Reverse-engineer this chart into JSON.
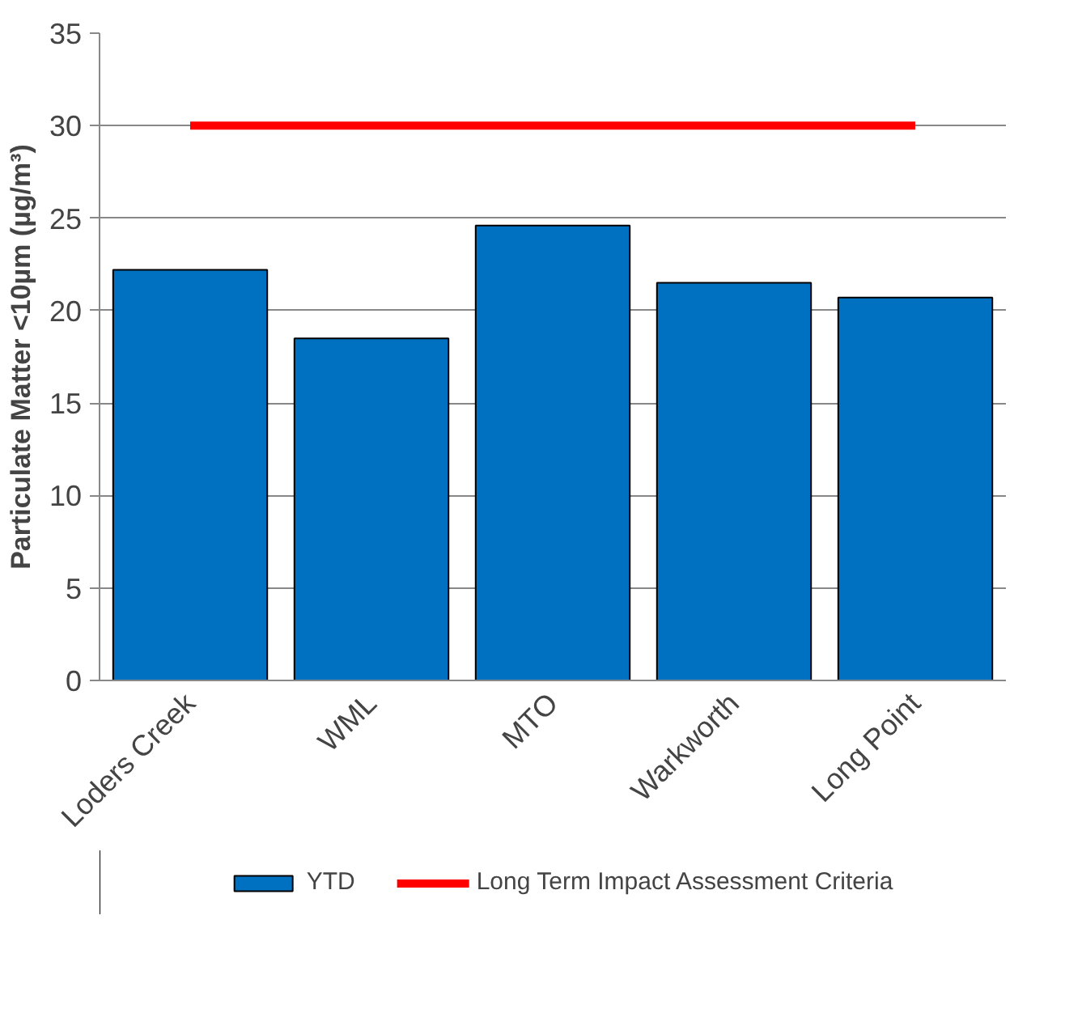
{
  "chart_data": {
    "type": "bar",
    "ylabel": "Particulate Matter <10µm (µg/m³)",
    "categories": [
      "Loders Creek",
      "WML",
      "MTO",
      "Warkworth",
      "Long Point"
    ],
    "series": [
      {
        "name": "YTD",
        "color": "#0070c0",
        "values": [
          22.2,
          18.5,
          24.6,
          21.5,
          20.7
        ]
      },
      {
        "name": "Long Term Impact Assessment Criteria",
        "type": "line",
        "color": "#ff0000",
        "values": [
          30,
          30,
          30,
          30,
          30
        ]
      }
    ],
    "ylim": [
      0,
      35
    ],
    "yticks": [
      0,
      5,
      10,
      15,
      20,
      25,
      30,
      35
    ],
    "grid": "y",
    "legend": "bottom"
  }
}
